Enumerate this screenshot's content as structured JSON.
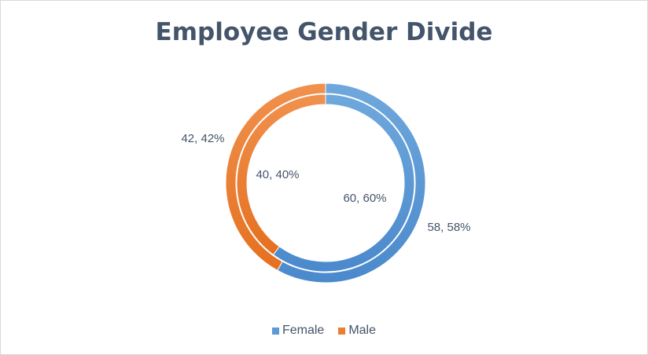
{
  "chart_data": {
    "type": "doughnut",
    "title": "Employee Gender Divide",
    "categories": [
      "Female",
      "Male"
    ],
    "series": [
      {
        "ring": "outer",
        "values": [
          58,
          42
        ],
        "labels": [
          "58, 58%",
          "42, 42%"
        ]
      },
      {
        "ring": "inner",
        "values": [
          60,
          40
        ],
        "labels": [
          "60, 60%",
          "40, 40%"
        ]
      }
    ],
    "colors": {
      "Female": "#5b9bd5",
      "Male": "#ed7d31"
    },
    "legend": "bottom"
  }
}
